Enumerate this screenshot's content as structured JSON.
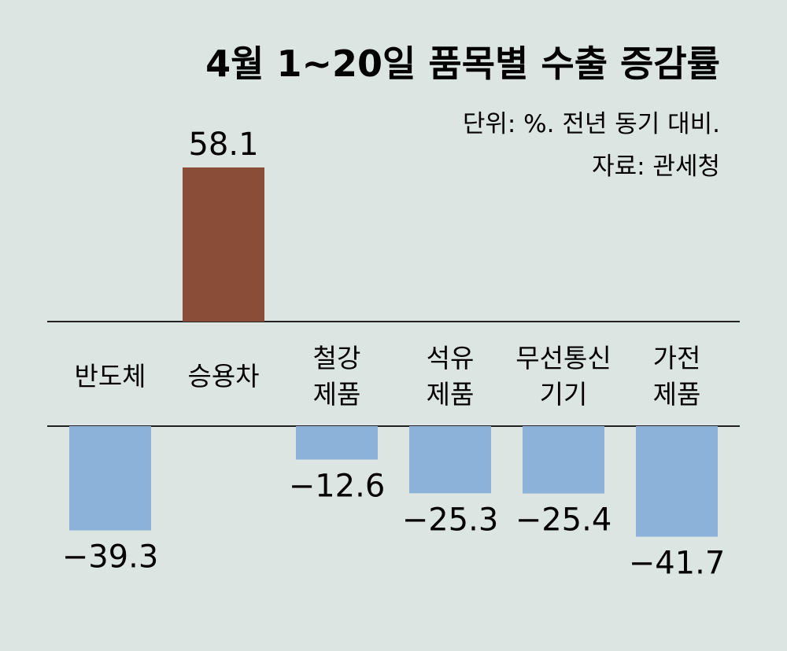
{
  "chart_data": {
    "type": "bar",
    "title": "4월 1~20일 품목별 수출 증감률",
    "unit_note": "단위: %. 전년 동기 대비.",
    "source_note": "자료: 관세청",
    "categories": [
      {
        "lines": [
          "반도체"
        ]
      },
      {
        "lines": [
          "승용차"
        ]
      },
      {
        "lines": [
          "철강",
          "제품"
        ]
      },
      {
        "lines": [
          "석유",
          "제품"
        ]
      },
      {
        "lines": [
          "무선통신",
          "기기"
        ]
      },
      {
        "lines": [
          "가전",
          "제품"
        ]
      }
    ],
    "values": [
      -39.3,
      58.1,
      -12.6,
      -25.3,
      -25.4,
      -41.7
    ],
    "value_labels": [
      "−39.3",
      "58.1",
      "−12.6",
      "−25.3",
      "−25.4",
      "−41.7"
    ],
    "colors": {
      "positive": "#8a4e38",
      "negative": "#8db2d9"
    },
    "grid": false,
    "legend": "none"
  }
}
